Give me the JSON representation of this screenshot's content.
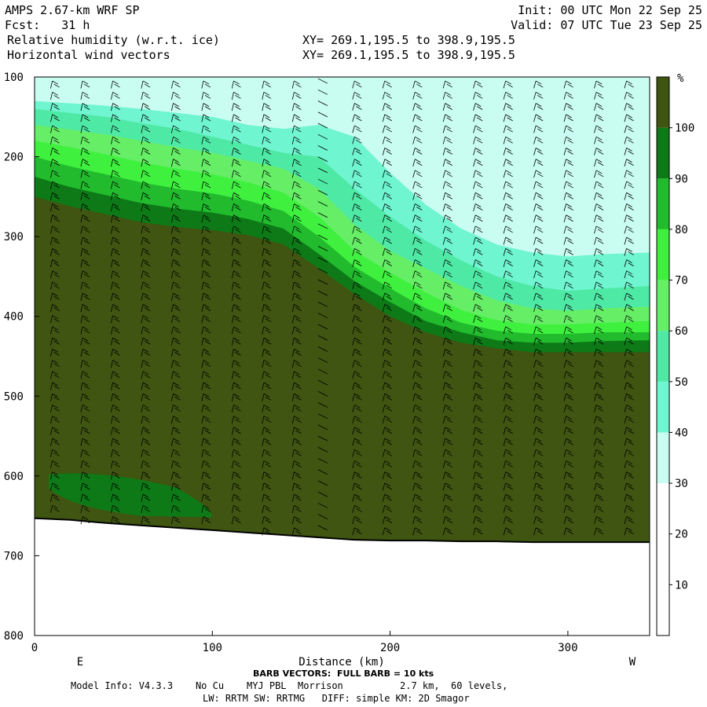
{
  "header": {
    "model_title": "AMPS 2.67-km WRF SP",
    "init": "Init: 00 UTC Mon 22 Sep 25",
    "forecast": "Fcst:   31 h",
    "valid": "Valid: 07 UTC Tue 23 Sep 25",
    "field1": "Relative humidity (w.r.t. ice)",
    "field2": "Horizontal wind vectors",
    "xy1": "XY= 269.1,195.5 to 398.9,195.5",
    "xy2": "XY= 269.1,195.5 to 398.9,195.5"
  },
  "footer": {
    "barb_note": "BARB VECTORS:  FULL BARB = 10 kts",
    "model_info": "Model Info: V4.3.3    No Cu    MYJ PBL  Morrison          2.7 km,  60 levels,",
    "physics": "LW: RRTM SW: RRTMG   DIFF: simple KM: 2D Smagor"
  },
  "colors": {
    "rh_gt_100": "#3f5511",
    "rh_90_100": "#0d7a17",
    "rh_80_90": "#21bb2d",
    "rh_70_80": "#3ff03f",
    "rh_60_70": "#66ee66",
    "rh_50_60": "#4fe9a6",
    "rh_40_50": "#6ff5d0",
    "rh_30_40": "#c9fdf1",
    "rh_lt_30": "#ffffff",
    "terrain_line": "#000000"
  },
  "chart_data": {
    "type": "heatmap",
    "title": "Relative humidity (w.r.t. ice)",
    "overlay": "Horizontal wind vectors",
    "xlabel": "Distance (km)",
    "ylabel": "",
    "x_ticks": [
      0,
      100,
      200,
      300
    ],
    "y_ticks": [
      100,
      200,
      300,
      400,
      500,
      600,
      700,
      800
    ],
    "xlim": [
      0,
      346
    ],
    "ylim": [
      800,
      100
    ],
    "x_end_labels": {
      "left": "E",
      "right": "W"
    },
    "colorbar": {
      "unit": "%",
      "levels": [
        10,
        20,
        30,
        40,
        50,
        60,
        70,
        80,
        90,
        100
      ]
    },
    "boundaries": {
      "x_km": [
        0,
        20,
        40,
        60,
        80,
        100,
        120,
        140,
        160,
        180,
        200,
        220,
        240,
        260,
        280,
        300,
        320,
        346
      ],
      "terrain": [
        653,
        655,
        659,
        662,
        665,
        668,
        671,
        674,
        677,
        680,
        681,
        681,
        682,
        682,
        683,
        683,
        683,
        683
      ],
      "rh100_top": [
        250,
        262,
        272,
        282,
        288,
        292,
        298,
        310,
        340,
        372,
        400,
        420,
        433,
        440,
        445,
        445,
        445,
        445
      ],
      "rh90_top": [
        225,
        238,
        248,
        258,
        265,
        270,
        278,
        290,
        322,
        356,
        382,
        406,
        420,
        430,
        433,
        433,
        431,
        430
      ],
      "rh80_top": [
        200,
        212,
        222,
        232,
        240,
        246,
        255,
        268,
        300,
        338,
        365,
        390,
        408,
        418,
        422,
        422,
        420,
        420
      ],
      "rh70_top": [
        180,
        188,
        197,
        207,
        215,
        222,
        232,
        245,
        275,
        318,
        345,
        370,
        392,
        405,
        410,
        410,
        408,
        406
      ],
      "rh60_top": [
        160,
        166,
        172,
        180,
        188,
        195,
        205,
        215,
        240,
        285,
        318,
        340,
        362,
        380,
        390,
        393,
        390,
        388
      ],
      "rh50_top": [
        140,
        145,
        150,
        158,
        165,
        175,
        185,
        195,
        200,
        240,
        275,
        305,
        330,
        350,
        362,
        368,
        365,
        362
      ],
      "rh40_top": [
        130,
        133,
        136,
        140,
        145,
        150,
        160,
        165,
        160,
        175,
        220,
        260,
        290,
        310,
        320,
        325,
        322,
        320
      ]
    },
    "barb_columns_km": [
      10,
      27,
      44,
      61,
      78,
      95,
      112,
      129,
      146,
      163,
      180,
      197,
      214,
      231,
      248,
      265,
      282,
      299,
      316,
      333
    ]
  }
}
